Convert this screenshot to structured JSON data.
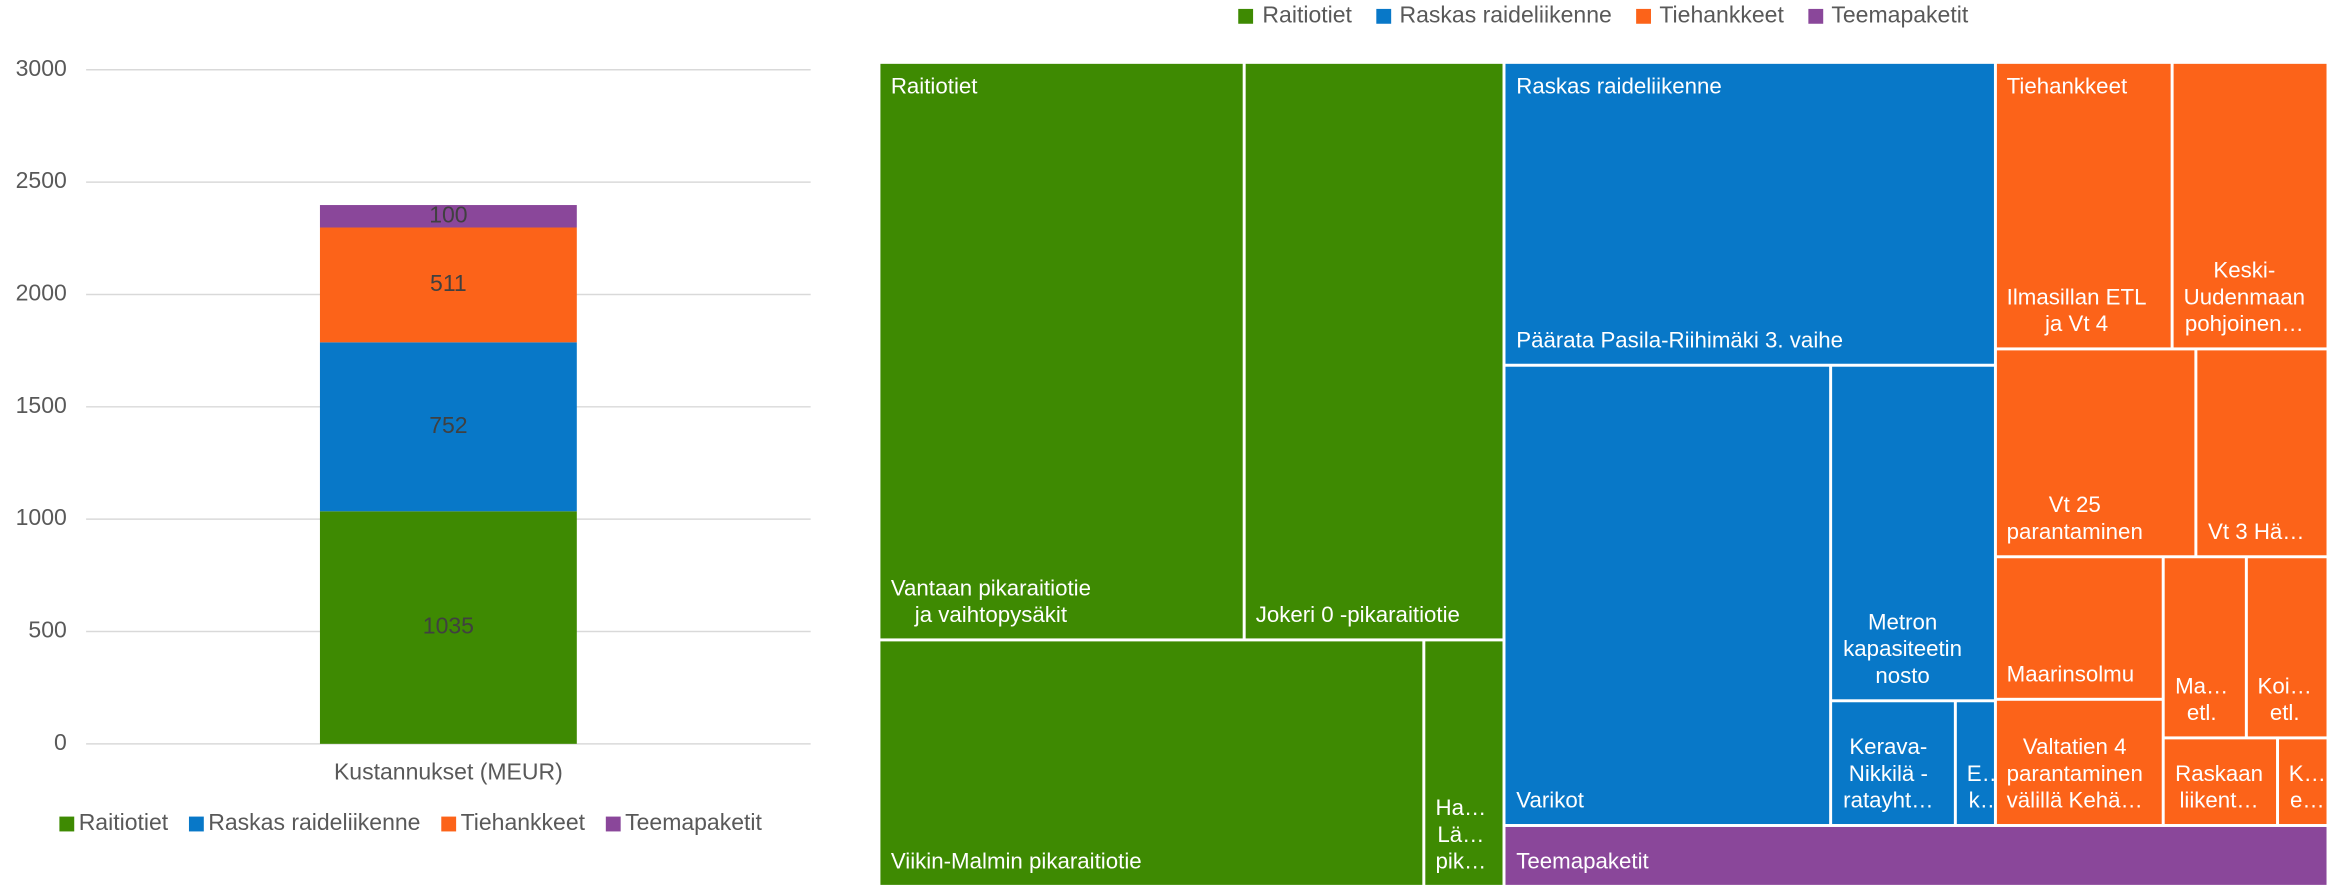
{
  "chart_data": [
    {
      "type": "stacked_bar",
      "categories": [
        "Kustannukset (MEUR)"
      ],
      "series": [
        {
          "name": "Raitiotiet",
          "color": "#3e8a02",
          "values": [
            1035
          ]
        },
        {
          "name": "Raskas raideliikenne",
          "color": "#0878c8",
          "values": [
            752
          ]
        },
        {
          "name": "Tiehankkeet",
          "color": "#fc6319",
          "values": [
            511
          ]
        },
        {
          "name": "Teemapaketit",
          "color": "#8a479a",
          "values": [
            100
          ]
        }
      ],
      "ylim": [
        0,
        3000
      ],
      "yticks": [
        0,
        500,
        1000,
        1500,
        2000,
        2500,
        3000
      ],
      "grid": true,
      "legend": "bottom",
      "data_labels": true
    },
    {
      "type": "treemap",
      "legend": "top",
      "groups": [
        {
          "name": "Raitiotiet",
          "color": "#3e8a02",
          "children": [
            {
              "name": "Vantaan pikaraitiotie\nja vaihtopysäkit",
              "value": 423
            },
            {
              "name": "Jokeri 0 -pikaraitiotie",
              "value": 302
            },
            {
              "name": "Viikin-Malmin pikaraitiotie",
              "value": 270
            },
            {
              "name": "Ha…\nLä…\npik…",
              "value": 40
            }
          ]
        },
        {
          "name": "Raskas raideliikenne",
          "color": "#0878c8",
          "children": [
            {
              "name": "Päärata Pasila-Riihimäki 3. vaihe",
              "value": 299
            },
            {
              "name": "Varikot",
              "value": 302
            },
            {
              "name": "Metron\nkapasiteetin\nnosto",
              "value": 110
            },
            {
              "name": "Kerava-\nNikkilä -\nratayht…",
              "value": 31
            },
            {
              "name": "E…\nk…",
              "value": 10
            }
          ]
        },
        {
          "name": "Tiehankkeet",
          "color": "#fc6319",
          "children": [
            {
              "name": "Ilmasillan ETL\nja Vt 4",
              "value": 102
            },
            {
              "name": "Keski-\nUudenmaan\npohjoinen…",
              "value": 90
            },
            {
              "name": "Vt 25\nparantaminen",
              "value": 84
            },
            {
              "name": "Vt 3 Hä…",
              "value": 55
            },
            {
              "name": "Maarinsolmu",
              "value": 48
            },
            {
              "name": "Ma…\netl.",
              "value": 30
            },
            {
              "name": "Koi…\netl.",
              "value": 30
            },
            {
              "name": "Valtatien 4\nparantaminen\nvälillä Kehä…",
              "value": 43
            },
            {
              "name": "Raskaan\nliikent…",
              "value": 20
            },
            {
              "name": "K…\ne…",
              "value": 9
            }
          ]
        },
        {
          "name": "Teemapaketit",
          "color": "#8a479a",
          "value": 100
        }
      ]
    }
  ]
}
